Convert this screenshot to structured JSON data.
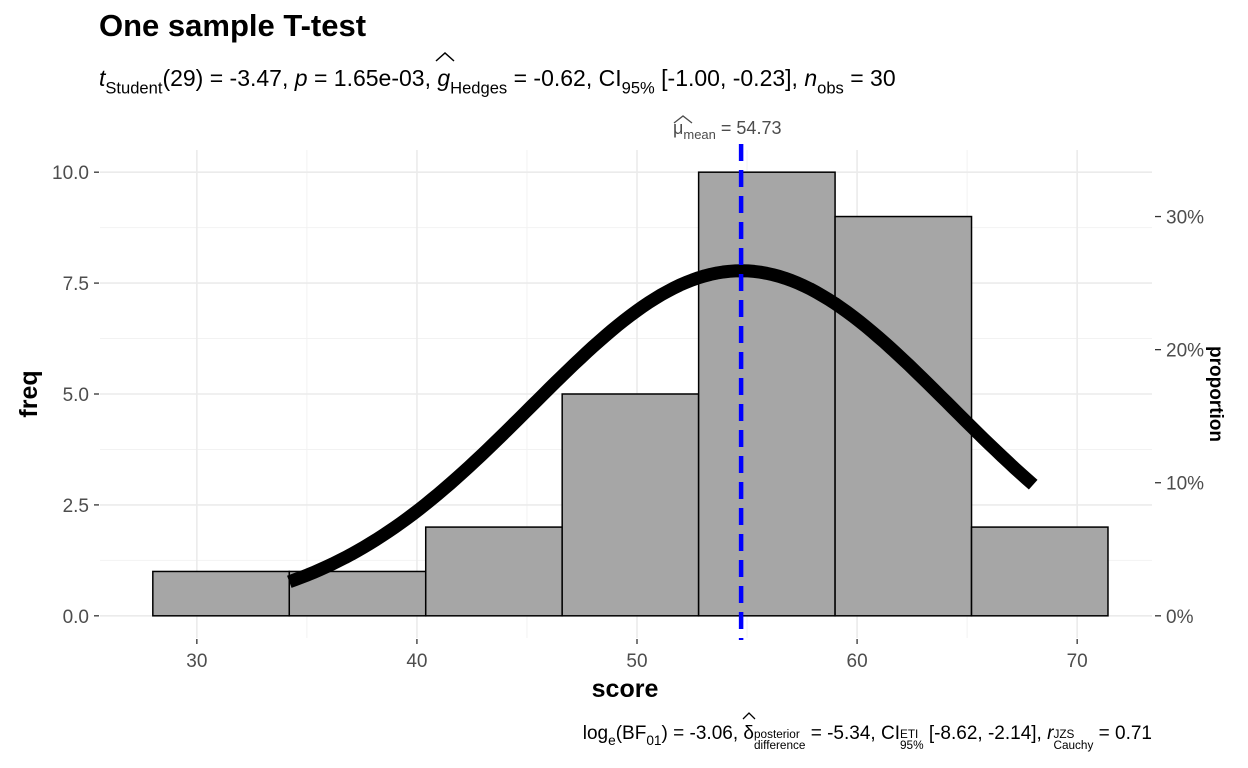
{
  "title": "One sample T-test",
  "subtitle": {
    "t_symbol": "t",
    "t_sub": "Student",
    "df_text": "(29) = -3.47, ",
    "p_symbol": "p",
    "p_text": " = 1.65e-03, ",
    "g_symbol": "g",
    "g_sub": "Hedges",
    "g_text": " = -0.62, CI",
    "ci_sub": "95%",
    "ci_text": " [-1.00, -0.23], ",
    "n_symbol": "n",
    "n_sub": "obs",
    "n_text": " = 30"
  },
  "caption": {
    "log_text": "log",
    "log_sub": "e",
    "bf_text": "(BF",
    "bf_sub": "01",
    "bf_val": ") = -3.06, ",
    "delta": "δ",
    "delta_sup": "posterior",
    "delta_sub": "difference",
    "delta_val": " = -5.34, CI",
    "ci_sup": "ETI",
    "ci_sub": "95%",
    "ci_val": " [-8.62, -2.14], ",
    "r_symbol": "r",
    "r_sup": "JZS",
    "r_sub": "Cauchy",
    "r_val": " = 0.71"
  },
  "mean_label": {
    "mu": "μ",
    "sub": "mean",
    "value": " = 54.73"
  },
  "chart_data": {
    "type": "bar",
    "subtype": "histogram",
    "title": "One sample T-test",
    "xlabel": "score",
    "ylabel": "freq",
    "ylabel_right": "proportion",
    "xlim": [
      25.6,
      73.4
    ],
    "ylim": [
      -0.5,
      10.5
    ],
    "xticks": [
      30,
      40,
      50,
      60,
      70
    ],
    "yticks": [
      "0.0",
      "2.5",
      "5.0",
      "7.5",
      "10.0"
    ],
    "ytick_values": [
      0,
      2.5,
      5,
      7.5,
      10
    ],
    "ticks_right": [
      "0%",
      "10%",
      "20%",
      "30%"
    ],
    "ticks_right_values": [
      0,
      0.1,
      0.2,
      0.3
    ],
    "bins": [
      {
        "start": 28.0,
        "end": 34.2,
        "count": 1
      },
      {
        "start": 34.2,
        "end": 40.4,
        "count": 1
      },
      {
        "start": 40.4,
        "end": 46.6,
        "count": 2
      },
      {
        "start": 46.6,
        "end": 52.8,
        "count": 5
      },
      {
        "start": 52.8,
        "end": 59.0,
        "count": 10
      },
      {
        "start": 59.0,
        "end": 65.2,
        "count": 9
      },
      {
        "start": 65.2,
        "end": 71.4,
        "count": 2
      }
    ],
    "normal_curve": {
      "mean": 54.73,
      "sd": 9.54,
      "n": 30,
      "binwidth": 6.2,
      "x_range": [
        34.2,
        68.0
      ]
    },
    "mean_line": {
      "x": 54.73,
      "color": "#0000ff"
    },
    "grid": true,
    "bar_color": "#a6a6a6",
    "curve_color": "#000000"
  }
}
